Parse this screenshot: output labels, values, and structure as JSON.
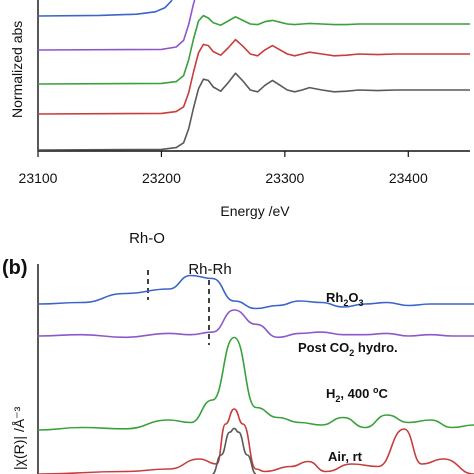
{
  "chart_data": [
    {
      "panel": "a",
      "type": "line",
      "xlabel": "Energy /eV",
      "ylabel": "Normalized abs",
      "xlim": [
        23100,
        23450
      ],
      "x_ticks": [
        23100,
        23200,
        23300,
        23400
      ],
      "x_tick_labels": [
        "23100",
        "23200",
        "23300",
        "23400"
      ],
      "series": [
        {
          "color": "#595959",
          "x": [
            23100,
            23200,
            23212,
            23218,
            23222,
            23226,
            23230,
            23234,
            23238,
            23242,
            23248,
            23254,
            23260,
            23266,
            23272,
            23278,
            23284,
            23290,
            23296,
            23302,
            23308,
            23314,
            23320,
            23330,
            23340,
            23350,
            23360,
            23375,
            23390,
            23410,
            23430,
            23450
          ],
          "y": [
            0,
            0.01,
            0.04,
            0.12,
            0.35,
            0.7,
            1.02,
            1.18,
            1.16,
            1.05,
            0.98,
            1.12,
            1.28,
            1.15,
            1.0,
            0.97,
            1.08,
            1.16,
            1.08,
            1.0,
            0.97,
            1.0,
            1.04,
            1.0,
            0.97,
            0.98,
            1.0,
            0.99,
            1.0,
            1.0,
            1.0,
            1.0
          ]
        },
        {
          "color": "#c83c3c",
          "x": [
            23100,
            23200,
            23212,
            23218,
            23222,
            23226,
            23230,
            23234,
            23238,
            23242,
            23248,
            23254,
            23260,
            23266,
            23272,
            23278,
            23284,
            23290,
            23296,
            23302,
            23308,
            23314,
            23320,
            23330,
            23340,
            23350,
            23360,
            23375,
            23390,
            23410,
            23430,
            23450
          ],
          "y": [
            0,
            0.01,
            0.04,
            0.12,
            0.35,
            0.7,
            1.02,
            1.16,
            1.14,
            1.04,
            0.98,
            1.1,
            1.24,
            1.13,
            1.0,
            0.97,
            1.07,
            1.14,
            1.07,
            1.0,
            0.97,
            1.0,
            1.03,
            1.0,
            0.97,
            0.98,
            1.0,
            0.99,
            1.0,
            1.0,
            1.0,
            1.0
          ]
        },
        {
          "color": "#3aa13a",
          "x": [
            23100,
            23200,
            23212,
            23218,
            23222,
            23226,
            23230,
            23234,
            23238,
            23242,
            23248,
            23254,
            23260,
            23266,
            23272,
            23278,
            23284,
            23290,
            23296,
            23302,
            23308,
            23314,
            23320,
            23330,
            23340,
            23350,
            23360,
            23375,
            23390,
            23410,
            23430,
            23450
          ],
          "y": [
            0,
            0.01,
            0.04,
            0.14,
            0.4,
            0.75,
            1.05,
            1.14,
            1.1,
            1.02,
            0.98,
            1.05,
            1.12,
            1.06,
            1.0,
            0.99,
            1.04,
            1.06,
            1.03,
            1.0,
            0.99,
            1.0,
            1.01,
            1.0,
            0.99,
            0.99,
            1.0,
            1.0,
            1.0,
            1.0,
            1.0,
            1.0
          ]
        },
        {
          "color": "#8c58c8",
          "x": [
            23100,
            23200,
            23212,
            23218,
            23222,
            23226,
            23230,
            23234,
            23238,
            23242,
            23248,
            23254,
            23260,
            23266,
            23272,
            23278,
            23284,
            23290,
            23296,
            23302,
            23308,
            23314,
            23320,
            23330,
            23340,
            23350,
            23360,
            23375,
            23390,
            23410,
            23430,
            23450
          ],
          "y": [
            0,
            0.01,
            0.05,
            0.16,
            0.42,
            0.77,
            1.05,
            1.12,
            1.08,
            1.02,
            0.99,
            1.04,
            1.1,
            1.05,
            1.0,
            0.99,
            1.03,
            1.05,
            1.02,
            1.0,
            0.99,
            1.0,
            1.01,
            1.0,
            0.99,
            0.99,
            1.0,
            1.0,
            1.0,
            1.0,
            1.0,
            1.0
          ]
        },
        {
          "color": "#3a64c8",
          "x": [
            23100,
            23150,
            23180,
            23195,
            23203,
            23208,
            23212,
            23216,
            23220,
            23224,
            23228,
            23232,
            23236,
            23240,
            23246,
            23252,
            23258,
            23264,
            23270,
            23276,
            23282,
            23288,
            23294,
            23300,
            23310,
            23320,
            23340,
            23360,
            23380,
            23400,
            23430,
            23450
          ],
          "y": [
            0,
            0.01,
            0.03,
            0.07,
            0.14,
            0.25,
            0.42,
            0.65,
            0.9,
            1.08,
            1.16,
            1.14,
            1.08,
            1.02,
            0.99,
            1.02,
            1.05,
            1.03,
            1.0,
            0.99,
            1.01,
            1.02,
            1.0,
            0.99,
            1.0,
            1.01,
            1.0,
            1.0,
            1.0,
            1.0,
            1.0,
            1.0
          ]
        }
      ]
    },
    {
      "panel": "b",
      "type": "line",
      "ylabel": "|χ(R)| /Å⁻³",
      "annotations": [
        {
          "label": "Rh-O"
        },
        {
          "label": "Rh-Rh"
        }
      ],
      "series": [
        {
          "name": "Rh2O3",
          "label_main": "Rh",
          "label_sub1": "2",
          "label_mid": "O",
          "label_sub2": "3",
          "color": "#3a64c8",
          "x": [
            0,
            0.1,
            0.2,
            0.3,
            0.35,
            0.4,
            0.45,
            0.5,
            0.55,
            0.6,
            0.65,
            0.7,
            0.75,
            0.8,
            0.85,
            0.9,
            0.95,
            1.0
          ],
          "y": [
            0.0,
            0.05,
            0.35,
            0.5,
            0.95,
            0.85,
            0.1,
            -0.15,
            -0.05,
            0.1,
            0.05,
            -0.1,
            0.0,
            0.05,
            -0.05,
            0.0,
            0.0,
            0.0
          ]
        },
        {
          "name": "Post CO2 hydro.",
          "label_main": "Post CO",
          "label_sub1": "2",
          "label_mid": " hydro.",
          "label_sub2": "",
          "color": "#8c58c8",
          "x": [
            0,
            0.1,
            0.2,
            0.3,
            0.35,
            0.4,
            0.45,
            0.5,
            0.55,
            0.6,
            0.65,
            0.7,
            0.75,
            0.8,
            0.85,
            0.9,
            0.95,
            1.0
          ],
          "y": [
            0.0,
            0.05,
            -0.05,
            0.1,
            0.05,
            0.15,
            1.0,
            0.45,
            -0.05,
            0.1,
            0.15,
            0.05,
            0.05,
            0.1,
            0.0,
            0.05,
            0.0,
            0.0
          ]
        },
        {
          "name": "H2, 400 oC",
          "label_main": "H",
          "label_sub1": "2",
          "label_mid": ", 400 ",
          "label_sup": "o",
          "label_end": "C",
          "color": "#3aa13a",
          "x": [
            0,
            0.1,
            0.2,
            0.3,
            0.35,
            0.4,
            0.45,
            0.5,
            0.55,
            0.6,
            0.65,
            0.7,
            0.75,
            0.8,
            0.85,
            0.9,
            0.95,
            1.0
          ],
          "y": [
            0.0,
            0.1,
            0.05,
            0.4,
            0.3,
            1.2,
            3.7,
            0.9,
            0.5,
            0.3,
            0.2,
            0.5,
            0.1,
            0.6,
            0.3,
            0.4,
            0.1,
            0.2
          ]
        },
        {
          "name": "Air, rt",
          "label_main": "Air, rt",
          "label_sub1": "",
          "label_mid": "",
          "label_sub2": "",
          "color": "#c83c3c",
          "x": [
            0,
            0.2,
            0.3,
            0.37,
            0.41,
            0.43,
            0.45,
            0.47,
            0.5,
            0.52,
            0.58,
            0.62,
            0.66,
            0.72,
            0.78,
            0.84,
            0.88,
            0.93,
            1.0
          ],
          "y": [
            0,
            0.05,
            0.1,
            0.3,
            0.2,
            1.0,
            1.3,
            1.0,
            0.1,
            0.05,
            0.15,
            0.25,
            0.05,
            0.2,
            0.15,
            0.9,
            0.2,
            0.3,
            0.0
          ]
        },
        {
          "name": "",
          "color": "#595959",
          "x": [
            0.4,
            0.42,
            0.44,
            0.45,
            0.46,
            0.48,
            0.5
          ],
          "y": [
            0,
            0.5,
            1.1,
            1.2,
            1.1,
            0.5,
            0
          ]
        }
      ]
    }
  ],
  "panel_labels": {
    "b": "(b)"
  }
}
